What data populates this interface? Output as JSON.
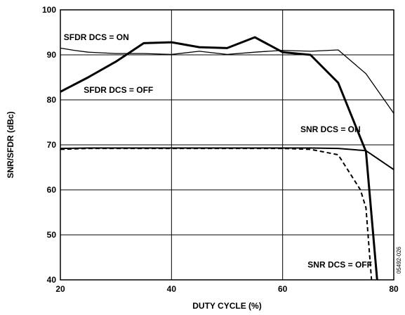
{
  "chart_data": {
    "type": "line",
    "xlabel": "DUTY CYCLE (%)",
    "ylabel": "SNR/SFDR (dBc)",
    "xlim": [
      20,
      80
    ],
    "ylim": [
      40,
      100
    ],
    "x_ticks": [
      20,
      40,
      60,
      80
    ],
    "y_ticks": [
      40,
      50,
      60,
      70,
      80,
      90,
      100
    ],
    "grid": true,
    "figure_id": "05492-026",
    "series": [
      {
        "name": "SFDR DCS = ON",
        "style": "thin",
        "x": [
          20,
          22.5,
          25,
          30,
          35,
          40,
          45,
          50,
          55,
          60,
          65,
          70,
          75,
          80
        ],
        "y": [
          91.5,
          91,
          90.6,
          90.3,
          90.3,
          90.1,
          90.8,
          90.1,
          90.6,
          91,
          90.8,
          91.1,
          85.8,
          77
        ]
      },
      {
        "name": "SFDR DCS = OFF",
        "style": "thick",
        "x": [
          20,
          25,
          30,
          35,
          40,
          45,
          50,
          55,
          60,
          65,
          70,
          75,
          77
        ],
        "y": [
          81.8,
          85,
          88.5,
          92.6,
          92.8,
          91.7,
          91.5,
          93.9,
          90.6,
          90,
          83.8,
          68.5,
          40
        ]
      },
      {
        "name": "SNR DCS = ON",
        "style": "solid",
        "x": [
          20,
          25,
          30,
          40,
          50,
          60,
          65,
          70,
          75,
          80
        ],
        "y": [
          69.2,
          69.3,
          69.3,
          69.3,
          69.3,
          69.3,
          69.3,
          69.2,
          68.7,
          64.5
        ]
      },
      {
        "name": "SNR DCS = OFF",
        "style": "dashed",
        "x": [
          20,
          25,
          30,
          40,
          50,
          60,
          65,
          70,
          74,
          75,
          76
        ],
        "y": [
          69,
          69.2,
          69.2,
          69.2,
          69.2,
          69.2,
          69,
          67.8,
          60,
          56,
          40
        ]
      }
    ],
    "annotations": [
      {
        "text": "SFDR DCS = ON",
        "x": 20.6,
        "y": 93.3
      },
      {
        "text": "SFDR DCS = OFF",
        "x": 24.2,
        "y": 81.6
      },
      {
        "text": "SNR DCS = ON",
        "x": 63.2,
        "y": 72.8
      },
      {
        "text": "SNR DCS = OFF",
        "x": 64.5,
        "y": 42.7
      }
    ]
  }
}
